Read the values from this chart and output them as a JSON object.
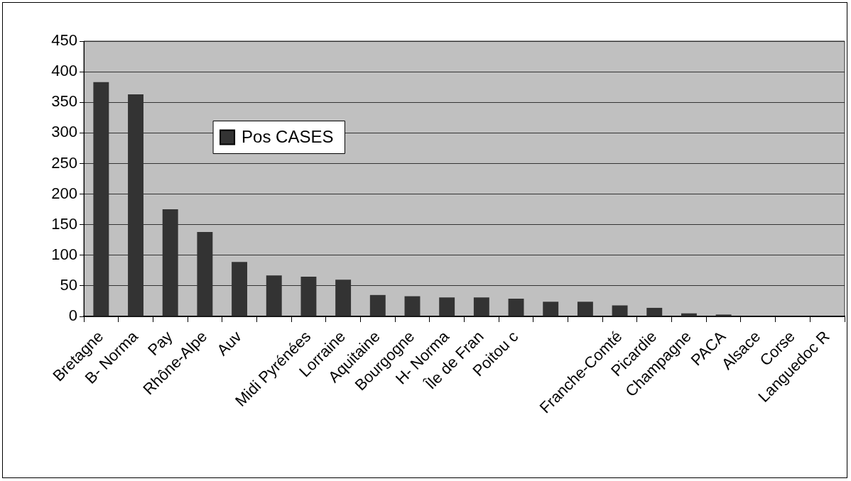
{
  "chart_data": {
    "type": "bar",
    "categories": [
      "Bretagne",
      "B- Norma",
      "Pay",
      "Rhône-Alpe",
      "Auv",
      null,
      "Midi Pyrénées",
      "Lorraine",
      "Aquitaine",
      "Bourgogne",
      "H- Norma",
      "Île de Fran",
      "Poitou c",
      null,
      null,
      "Franche-Comté",
      "Picardie",
      "Champagne",
      "PACA",
      "Alsace",
      "Corse",
      "Languedoc R"
    ],
    "series": [
      {
        "name": "Pos CASES",
        "color": "#333333",
        "values": [
          383,
          363,
          175,
          138,
          89,
          67,
          65,
          60,
          35,
          33,
          31,
          31,
          29,
          24,
          24,
          18,
          14,
          5,
          3,
          0,
          0,
          0
        ]
      }
    ],
    "ylim": [
      0,
      450
    ],
    "yticks": [
      0,
      50,
      100,
      150,
      200,
      250,
      300,
      350,
      400,
      450
    ],
    "grid": "y",
    "legend": "top left"
  }
}
